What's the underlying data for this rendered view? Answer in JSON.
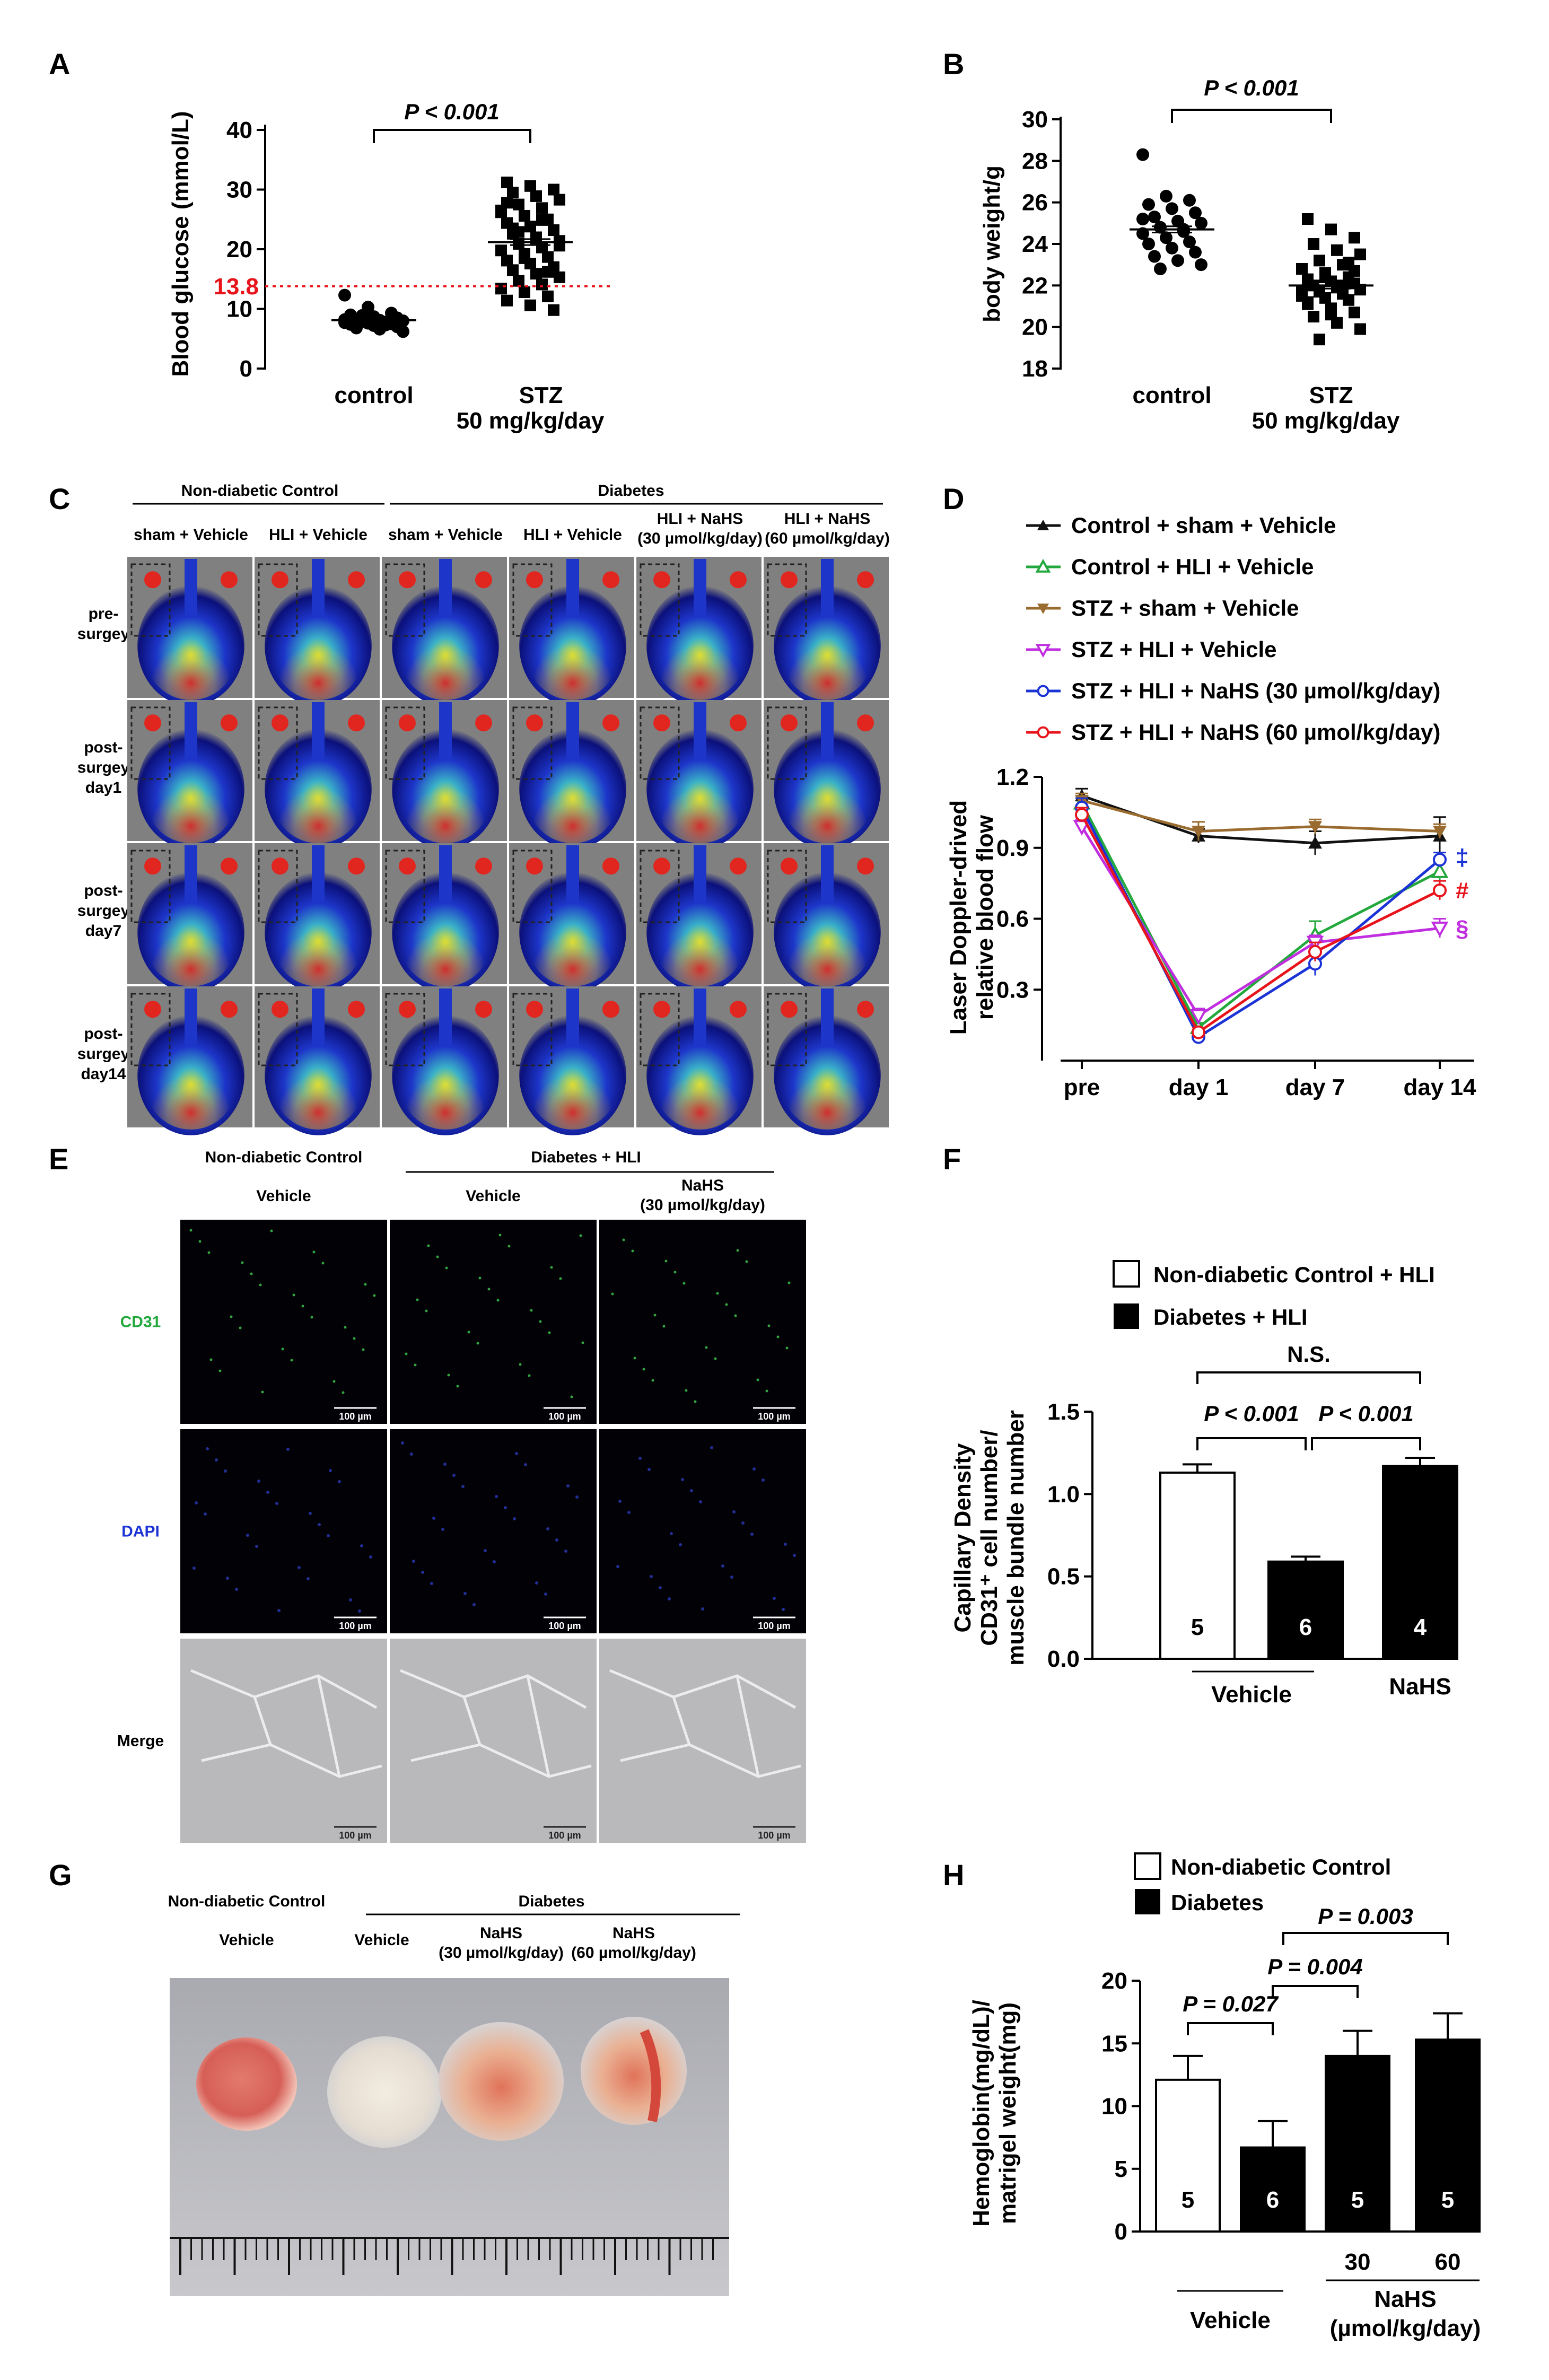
{
  "panels": {
    "A": "A",
    "B": "B",
    "C": "C",
    "D": "D",
    "E": "E",
    "F": "F",
    "G": "G",
    "H": "H"
  },
  "colors": {
    "red": "#e8141b",
    "blue": "#1c33d6",
    "green": "#22a83c",
    "brown": "#9a6b2f",
    "magenta": "#c12ee0",
    "black": "#111111"
  },
  "chart_data": [
    {
      "id": "A",
      "type": "scatter",
      "ylabel": "Blood glucose (mmol/L)",
      "ylim": [
        0,
        40
      ],
      "yticks": [
        "0",
        "10",
        "20",
        "30",
        "40"
      ],
      "categories": [
        "control",
        "STZ"
      ],
      "cat2_line2": "50 mg/kg/day",
      "threshold": 13.8,
      "threshold_label": "13.8",
      "pval": "P < 0.001",
      "points": {
        "control": [
          12.3,
          10.3,
          9.3,
          9.0,
          8.7,
          8.5,
          8.3,
          8.1,
          8.0,
          7.9,
          7.8,
          7.7,
          7.6,
          7.5,
          7.4,
          7.2,
          7.0,
          6.8,
          6.6,
          6.2,
          8.9,
          7.3,
          8.2
        ],
        "STZ": [
          31.2,
          30.6,
          30.0,
          29.5,
          28.9,
          28.3,
          27.5,
          26.9,
          26.2,
          25.6,
          25.0,
          24.4,
          23.8,
          23.2,
          22.6,
          22.0,
          21.4,
          20.9,
          20.3,
          19.8,
          19.2,
          18.7,
          18.1,
          17.6,
          17.0,
          16.5,
          15.9,
          15.3,
          14.7,
          14.1,
          13.4,
          12.8,
          12.1,
          11.4,
          10.6,
          9.8,
          23.5,
          21.8,
          20.6,
          22.9,
          24.9,
          26.5,
          18.5,
          16.2,
          27.8
        ]
      },
      "means": {
        "control": 8.1,
        "STZ": 21.2
      }
    },
    {
      "id": "B",
      "type": "scatter",
      "ylabel": "body weight/g",
      "ylim": [
        18,
        30
      ],
      "yticks": [
        "18",
        "20",
        "22",
        "24",
        "26",
        "28",
        "30"
      ],
      "categories": [
        "control",
        "STZ"
      ],
      "cat2_line2": "50 mg/kg/day",
      "pval": "P < 0.001",
      "points": {
        "control": [
          28.3,
          26.3,
          26.1,
          25.9,
          25.7,
          25.5,
          25.3,
          25.1,
          25.0,
          24.8,
          24.6,
          24.5,
          24.3,
          24.1,
          24.0,
          23.8,
          23.6,
          23.4,
          23.2,
          23.0,
          22.8,
          24.7,
          25.2
        ],
        "STZ": [
          25.2,
          24.7,
          24.3,
          24.0,
          23.7,
          23.5,
          23.2,
          23.0,
          22.8,
          22.6,
          22.4,
          22.3,
          22.2,
          22.1,
          22.0,
          21.9,
          21.8,
          21.7,
          21.6,
          21.5,
          21.4,
          21.3,
          21.1,
          20.9,
          20.7,
          20.5,
          20.2,
          19.9,
          19.4,
          22.0,
          21.7,
          22.4,
          23.1,
          21.2,
          20.6,
          22.7
        ]
      },
      "means": {
        "control": 24.7,
        "STZ": 22.0
      }
    },
    {
      "id": "D",
      "type": "line",
      "ylabel": "Laser Doppler-drived relative blood flow",
      "categories": [
        "pre",
        "day 1",
        "day 7",
        "day 14"
      ],
      "ylim": [
        0,
        1.2
      ],
      "yticks": [
        "0.3",
        "0.6",
        "0.9",
        "1.2"
      ],
      "series": [
        {
          "name": "Control + sham + Vehicle",
          "color": "#111111",
          "marker": "tri-up-filled",
          "values": [
            1.12,
            0.95,
            0.92,
            0.95
          ],
          "err": [
            0.03,
            0.03,
            0.05,
            0.08
          ]
        },
        {
          "name": "Control + HLI + Vehicle",
          "color": "#22a83c",
          "marker": "tri-up-open",
          "values": [
            1.09,
            0.14,
            0.53,
            0.8
          ],
          "err": [
            0.03,
            0.02,
            0.06,
            0.04
          ]
        },
        {
          "name": "STZ + sham + Vehicle",
          "color": "#9a6b2f",
          "marker": "tri-down-filled",
          "values": [
            1.1,
            0.97,
            0.99,
            0.97
          ],
          "err": [
            0.03,
            0.04,
            0.03,
            0.03
          ]
        },
        {
          "name": "STZ + HLI + Vehicle",
          "color": "#c12ee0",
          "marker": "tri-down-open",
          "values": [
            0.99,
            0.19,
            0.5,
            0.56
          ],
          "err": [
            0.03,
            0.03,
            0.03,
            0.04
          ]
        },
        {
          "name": "STZ + HLI + NaHS (30 µmol/kg/day)",
          "color": "#1c33d6",
          "marker": "circle-open",
          "values": [
            1.07,
            0.1,
            0.41,
            0.85
          ],
          "err": [
            0.04,
            0.02,
            0.05,
            0.03
          ]
        },
        {
          "name": "STZ + HLI + NaHS (60 µmol/kg/day)",
          "color": "#e8141b",
          "marker": "circle-open",
          "values": [
            1.04,
            0.12,
            0.46,
            0.72
          ],
          "err": [
            0.03,
            0.02,
            0.04,
            0.04
          ]
        }
      ],
      "symbols": [
        {
          "text": "‡",
          "color": "#1c33d6",
          "v": 0.86
        },
        {
          "text": "#",
          "color": "#e8141b",
          "v": 0.72
        },
        {
          "text": "§",
          "color": "#c12ee0",
          "v": 0.56
        }
      ]
    },
    {
      "id": "F",
      "type": "bar",
      "ylabel": "Capillary Density CD31+ cell number/ muscle bundle number",
      "ylim": [
        0,
        1.5
      ],
      "yticks": [
        "0.0",
        "0.5",
        "1.0",
        "1.5"
      ],
      "legend": [
        "Non-diabetic Control + HLI",
        "Diabetes + HLI"
      ],
      "bars": [
        {
          "value": 1.13,
          "err": 0.05,
          "n": "5",
          "fill": "white"
        },
        {
          "value": 0.59,
          "err": 0.03,
          "n": "6",
          "fill": "black"
        },
        {
          "value": 1.17,
          "err": 0.05,
          "n": "4",
          "fill": "black"
        }
      ],
      "xgroups": [
        "Vehicle",
        "NaHS"
      ],
      "pvals": [
        "N.S.",
        "P < 0.001",
        "P < 0.001"
      ]
    },
    {
      "id": "H",
      "type": "bar",
      "ylabel": "Hemoglobin(mg/dL)/ matrigel weight(mg)",
      "ylim": [
        0,
        20
      ],
      "yticks": [
        "0",
        "5",
        "10",
        "15",
        "20"
      ],
      "legend": [
        "Non-diabetic Control",
        "Diabetes"
      ],
      "bars": [
        {
          "value": 12.1,
          "err": 1.9,
          "n": "5",
          "fill": "white"
        },
        {
          "value": 6.7,
          "err": 2.1,
          "n": "6",
          "fill": "black"
        },
        {
          "value": 14.0,
          "err": 2.0,
          "n": "5",
          "fill": "black"
        },
        {
          "value": 15.3,
          "err": 2.1,
          "n": "5",
          "fill": "black"
        }
      ],
      "doses": [
        "30",
        "60"
      ],
      "xgroups": [
        "Vehicle",
        "NaHS",
        "(µmol/kg/day)"
      ],
      "pvals": [
        "P = 0.027",
        "P = 0.004",
        "P = 0.003"
      ]
    }
  ],
  "panelC": {
    "group1": "Non-diabetic Control",
    "group2": "Diabetes",
    "cols": [
      "sham + Vehicle",
      "HLI + Vehicle",
      "sham + Vehicle",
      "HLI + Vehicle",
      "HLI + NaHS",
      "HLI + NaHS"
    ],
    "cols_line2": [
      "",
      "",
      "",
      "",
      "(30 µmol/kg/day)",
      "(60 µmol/kg/day)"
    ],
    "rows": [
      [
        "pre-",
        "surgey"
      ],
      [
        "post-",
        "surgey",
        "day1"
      ],
      [
        "post-",
        "surgey",
        "day7"
      ],
      [
        "post-",
        "surgey",
        "day14"
      ]
    ]
  },
  "panelE": {
    "group1": "Non-diabetic Control",
    "group2": "Diabetes + HLI",
    "cols": [
      "Vehicle",
      "Vehicle",
      "NaHS"
    ],
    "cols_line2": [
      "",
      "",
      "(30 µmol/kg/day)"
    ],
    "rows": [
      "CD31",
      "DAPI",
      "Merge"
    ],
    "scale": "100 µm"
  },
  "panelG": {
    "group1": "Non-diabetic Control",
    "group2": "Diabetes",
    "cols": [
      "Vehicle",
      "Vehicle",
      "NaHS",
      "NaHS"
    ],
    "cols_line2": [
      "",
      "",
      "(30 µmol/kg/day)",
      "(60 µmol/kg/day)"
    ]
  }
}
